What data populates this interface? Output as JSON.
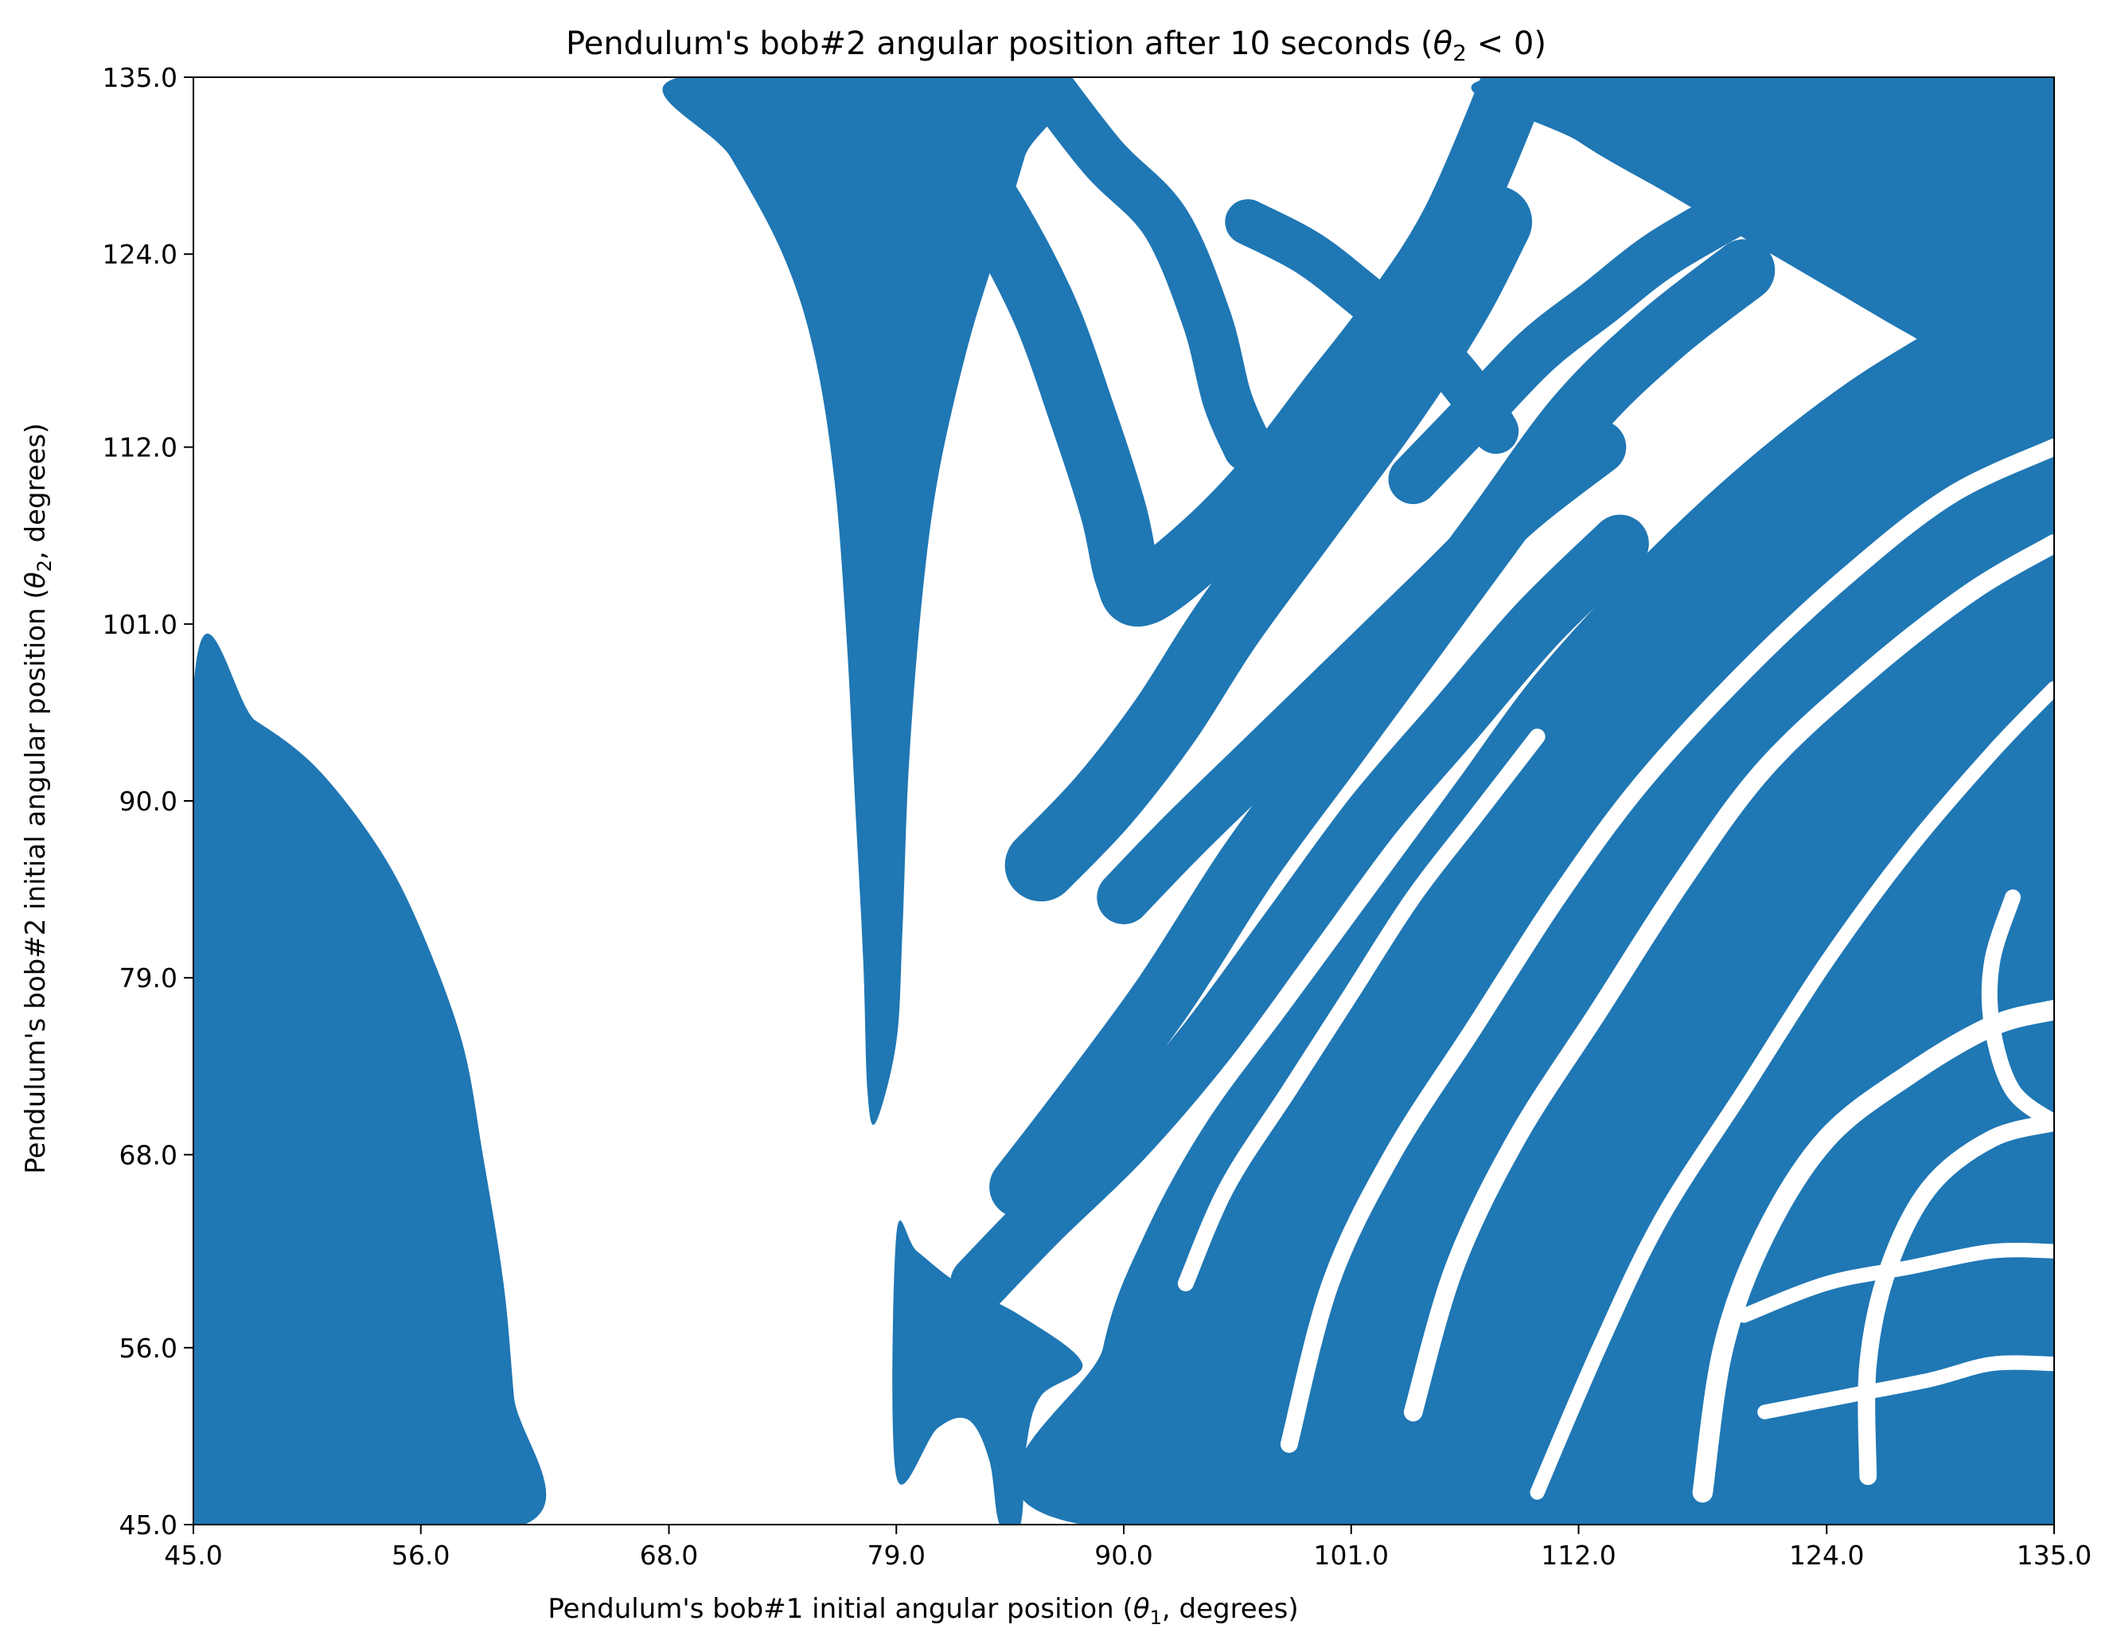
{
  "chart_data": {
    "type": "heatmap",
    "title": {
      "main": "Pendulum's bob#2 angular position after 10 seconds (",
      "var": "θ",
      "sub": "2",
      "rest": " < 0)"
    },
    "xlabel": {
      "main": "Pendulum's bob#1 initial angular position (",
      "var": "θ",
      "sub": "1",
      "rest": ", degrees)"
    },
    "ylabel": {
      "main": "Pendulum's bob#2 initial angular position (",
      "var": "θ",
      "sub": "2",
      "rest": ", degrees)"
    },
    "xlim": [
      45.0,
      135.0
    ],
    "ylim": [
      45.0,
      135.0
    ],
    "x_ticks": [
      "45.0",
      "56.0",
      "68.0",
      "79.0",
      "90.0",
      "101.0",
      "112.0",
      "124.0",
      "135.0"
    ],
    "y_ticks": [
      "45.0",
      "56.0",
      "68.0",
      "79.0",
      "90.0",
      "101.0",
      "112.0",
      "124.0",
      "135.0"
    ],
    "grid": false,
    "fill_color": "#1f77b4",
    "regions": [
      {
        "name": "lower-left-lobe",
        "points": [
          [
            45,
            97
          ],
          [
            48,
            95
          ],
          [
            51,
            92
          ],
          [
            54,
            87
          ],
          [
            56,
            82
          ],
          [
            58,
            75
          ],
          [
            59,
            68
          ],
          [
            60,
            60
          ],
          [
            60.5,
            53
          ],
          [
            61,
            45
          ],
          [
            45,
            45
          ]
        ]
      },
      {
        "name": "central-tongue",
        "points": [
          [
            68.5,
            135
          ],
          [
            71,
            130
          ],
          [
            73.5,
            124
          ],
          [
            75,
            118
          ],
          [
            76,
            110
          ],
          [
            76.6,
            100
          ],
          [
            77,
            90
          ],
          [
            77.4,
            80
          ],
          [
            77.6,
            72
          ],
          [
            78,
            70
          ],
          [
            79,
            75
          ],
          [
            79.3,
            82
          ],
          [
            79.6,
            92
          ],
          [
            80.2,
            102
          ],
          [
            81,
            110
          ],
          [
            82.4,
            118
          ],
          [
            83.8,
            124
          ],
          [
            85.2,
            130
          ],
          [
            86.3,
            135
          ]
        ]
      },
      {
        "name": "lower-tongue",
        "points": [
          [
            79,
            48
          ],
          [
            81,
            51
          ],
          [
            82.5,
            51.5
          ],
          [
            83.5,
            49
          ],
          [
            84,
            45
          ],
          [
            85,
            45
          ],
          [
            85.3,
            50
          ],
          [
            86,
            53
          ],
          [
            88,
            55
          ],
          [
            85,
            58
          ],
          [
            82,
            60
          ],
          [
            80,
            62
          ],
          [
            79,
            63
          ]
        ]
      },
      {
        "name": "right-basin",
        "points": [
          [
            88,
            45
          ],
          [
            89,
            56
          ],
          [
            91,
            63
          ],
          [
            94,
            70
          ],
          [
            98,
            77
          ],
          [
            102,
            84
          ],
          [
            106,
            91
          ],
          [
            110,
            98
          ],
          [
            115,
            105
          ],
          [
            120,
            111
          ],
          [
            125,
            116
          ],
          [
            130,
            120
          ],
          [
            135,
            124
          ],
          [
            135,
            45
          ]
        ]
      },
      {
        "name": "upper-right",
        "points": [
          [
            108,
            135
          ],
          [
            112,
            131
          ],
          [
            116,
            128
          ],
          [
            120,
            125
          ],
          [
            124,
            122
          ],
          [
            128,
            119
          ],
          [
            131,
            117
          ],
          [
            135,
            116
          ],
          [
            135,
            135
          ]
        ]
      }
    ],
    "filaments": [
      {
        "name": "filament-a",
        "width": 3.2,
        "points": [
          [
            79,
            135
          ],
          [
            83,
            128
          ],
          [
            86,
            121
          ],
          [
            88,
            114
          ],
          [
            89.5,
            108
          ],
          [
            90.2,
            104
          ],
          [
            91,
            103
          ],
          [
            94,
            106
          ],
          [
            97,
            110
          ],
          [
            100,
            115
          ],
          [
            103,
            120
          ],
          [
            106,
            126
          ],
          [
            109,
            135
          ]
        ]
      },
      {
        "name": "filament-b",
        "width": 2.4,
        "points": [
          [
            86,
            135
          ],
          [
            89,
            130
          ],
          [
            92,
            126
          ],
          [
            94,
            120
          ],
          [
            95,
            115
          ],
          [
            96,
            112
          ]
        ]
      },
      {
        "name": "filament-c",
        "width": 3.5,
        "points": [
          [
            86,
            86
          ],
          [
            89,
            90
          ],
          [
            92,
            95
          ],
          [
            95,
            101
          ],
          [
            99,
            108
          ],
          [
            103,
            115
          ],
          [
            106,
            121
          ],
          [
            108,
            126
          ]
        ]
      },
      {
        "name": "filament-d",
        "width": 3.0,
        "points": [
          [
            85,
            66
          ],
          [
            88,
            71
          ],
          [
            92,
            78
          ],
          [
            96,
            86
          ],
          [
            100,
            93
          ],
          [
            104,
            100
          ],
          [
            108,
            107
          ],
          [
            112,
            114
          ],
          [
            116,
            119
          ],
          [
            120,
            123
          ]
        ]
      },
      {
        "name": "filament-e",
        "width": 2.8,
        "points": [
          [
            83,
            60
          ],
          [
            86,
            64
          ],
          [
            90,
            69
          ],
          [
            94,
            75
          ],
          [
            98,
            82
          ],
          [
            102,
            89
          ],
          [
            106,
            95
          ],
          [
            110,
            101
          ],
          [
            114,
            106
          ]
        ]
      },
      {
        "name": "filament-f",
        "width": 2.6,
        "points": [
          [
            90,
            84
          ],
          [
            93,
            88
          ],
          [
            97,
            93
          ],
          [
            101,
            98
          ],
          [
            105,
            103
          ],
          [
            109,
            108
          ],
          [
            113,
            112
          ]
        ]
      },
      {
        "name": "filament-g",
        "width": 2.4,
        "points": [
          [
            104,
            110
          ],
          [
            107,
            114
          ],
          [
            110,
            118
          ],
          [
            113,
            121
          ],
          [
            116,
            124
          ],
          [
            120,
            127
          ],
          [
            124,
            130
          ],
          [
            128,
            132
          ],
          [
            132,
            134
          ]
        ]
      },
      {
        "name": "filament-h",
        "width": 2.2,
        "points": [
          [
            96,
            126
          ],
          [
            99,
            124
          ],
          [
            102,
            121
          ],
          [
            105,
            118
          ],
          [
            107,
            115
          ],
          [
            108,
            113
          ]
        ]
      },
      {
        "name": "filament-i",
        "width": 2.0,
        "points": [
          [
            123,
            133
          ],
          [
            125,
            130
          ],
          [
            127,
            127
          ],
          [
            129,
            124
          ],
          [
            131,
            122
          ],
          [
            133,
            121
          ],
          [
            135,
            120
          ]
        ]
      },
      {
        "name": "filament-j",
        "width": 2.0,
        "points": [
          [
            118,
            131
          ],
          [
            121,
            128
          ],
          [
            124,
            126
          ],
          [
            127,
            124
          ],
          [
            130,
            123
          ],
          [
            133,
            122
          ]
        ]
      }
    ],
    "gaps": [
      {
        "name": "gap-a",
        "width": 2.4,
        "points": [
          [
            98,
            50
          ],
          [
            100,
            60
          ],
          [
            103,
            68
          ],
          [
            107,
            76
          ],
          [
            111,
            84
          ],
          [
            115,
            91
          ],
          [
            120,
            98
          ],
          [
            125,
            104
          ],
          [
            130,
            109
          ],
          [
            135,
            112
          ]
        ]
      },
      {
        "name": "gap-b",
        "width": 2.6,
        "points": [
          [
            104,
            52
          ],
          [
            106,
            61
          ],
          [
            109,
            69
          ],
          [
            113,
            77
          ],
          [
            117,
            85
          ],
          [
            121,
            92
          ],
          [
            126,
            98
          ],
          [
            131,
            103
          ],
          [
            135,
            106
          ]
        ]
      },
      {
        "name": "gap-c",
        "width": 2.0,
        "points": [
          [
            110,
            47
          ],
          [
            113,
            56
          ],
          [
            116,
            64
          ],
          [
            120,
            72
          ],
          [
            124,
            80
          ],
          [
            128,
            87
          ],
          [
            132,
            93
          ],
          [
            135,
            97
          ]
        ]
      },
      {
        "name": "gap-d",
        "width": 2.8,
        "points": [
          [
            118,
            47
          ],
          [
            119,
            56
          ],
          [
            121,
            63
          ],
          [
            124,
            69
          ],
          [
            128,
            73
          ],
          [
            132,
            76
          ],
          [
            135,
            77
          ]
        ]
      },
      {
        "name": "gap-e",
        "width": 2.4,
        "points": [
          [
            126,
            48
          ],
          [
            126,
            55
          ],
          [
            127,
            61
          ],
          [
            129,
            66
          ],
          [
            132,
            69
          ],
          [
            135,
            70
          ]
        ]
      },
      {
        "name": "gap-f",
        "width": 2.2,
        "points": [
          [
            93,
            60
          ],
          [
            95,
            66
          ],
          [
            98,
            72
          ],
          [
            101,
            78
          ],
          [
            104,
            84
          ],
          [
            107,
            89
          ],
          [
            110,
            94
          ]
        ]
      },
      {
        "name": "gap-g",
        "width": 2.0,
        "points": [
          [
            120,
            58
          ],
          [
            124,
            60
          ],
          [
            128,
            61
          ],
          [
            132,
            62
          ],
          [
            135,
            62
          ]
        ]
      },
      {
        "name": "gap-h",
        "width": 2.0,
        "points": [
          [
            121,
            52
          ],
          [
            125,
            53
          ],
          [
            129,
            54
          ],
          [
            132,
            55
          ],
          [
            135,
            55
          ]
        ]
      },
      {
        "name": "gap-i",
        "width": 2.2,
        "points": [
          [
            133,
            84
          ],
          [
            132,
            80
          ],
          [
            132,
            76
          ],
          [
            133,
            72
          ],
          [
            135,
            70
          ]
        ]
      }
    ]
  }
}
